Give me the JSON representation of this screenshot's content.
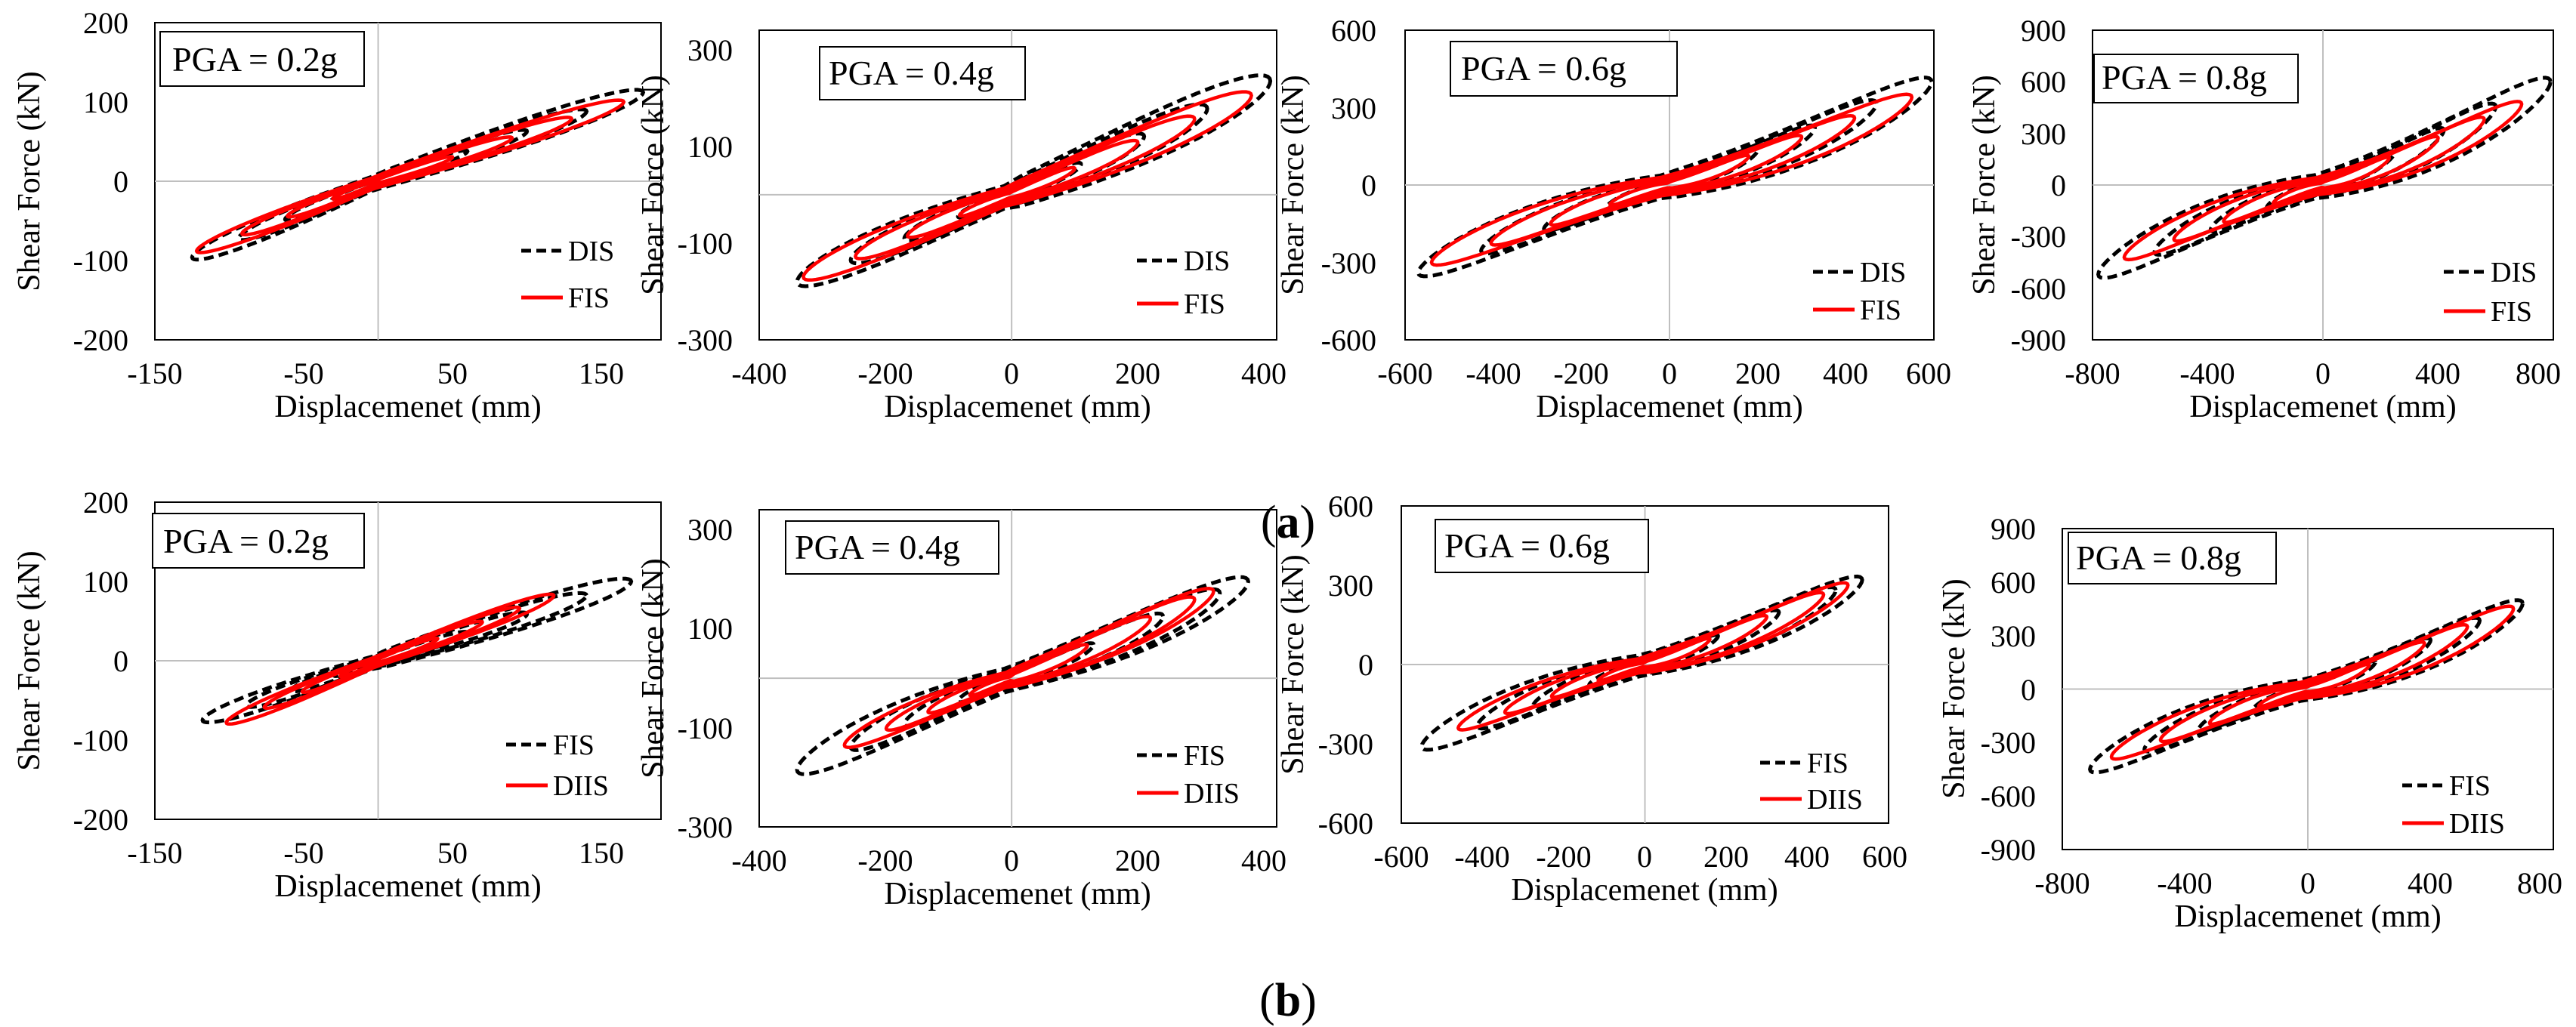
{
  "figure": {
    "row_a_caption": "(a)",
    "row_a_letter": "a",
    "row_b_caption": "(b)",
    "row_b_letter": "b"
  },
  "colors": {
    "dashed_series": "#000000",
    "solid_series": "#ff0000",
    "zero_lines": "#bfbfbf"
  },
  "chart_data": [
    {
      "id": "a1",
      "row": "a",
      "type": "line",
      "title": "PGA = 0.2g",
      "xlabel": "Displacemenet (mm)",
      "ylabel": "Shear Force (kN)",
      "xlim": [
        -150,
        190
      ],
      "ylim": [
        -200,
        200
      ],
      "xticks": [
        -150,
        -50,
        50,
        150
      ],
      "yticks": [
        -200,
        -100,
        0,
        100,
        200
      ],
      "series": [
        {
          "name": "DIS",
          "style": "dashed",
          "color": "#000000",
          "amp_x": [
            60,
            100,
            140,
            178
          ],
          "peak_force": 112,
          "min_x": -125,
          "min_force": -96,
          "pinch": 0.0,
          "width": 0.25
        },
        {
          "name": "FIS",
          "style": "solid",
          "color": "#ff0000",
          "amp_x": [
            50,
            90,
            130,
            165
          ],
          "peak_force": 100,
          "min_x": -122,
          "min_force": -88,
          "pinch": 0.0,
          "width": 0.22
        }
      ]
    },
    {
      "id": "a2",
      "row": "a",
      "type": "line",
      "title": "PGA = 0.4g",
      "xlabel": "Displacemenet (mm)",
      "ylabel": "Shear Force (kN)",
      "xlim": [
        -400,
        420
      ],
      "ylim": [
        -300,
        340
      ],
      "xticks": [
        -400,
        -200,
        0,
        200,
        400
      ],
      "yticks": [
        -300,
        -100,
        100,
        300
      ],
      "series": [
        {
          "name": "DIS",
          "style": "dashed",
          "color": "#000000",
          "amp_x": [
            110,
            210,
            310,
            410
          ],
          "peak_force": 235,
          "min_x": -340,
          "min_force": -180,
          "pinch": 0.2,
          "width": 0.35
        },
        {
          "name": "FIS",
          "style": "solid",
          "color": "#ff0000",
          "amp_x": [
            100,
            200,
            290,
            380
          ],
          "peak_force": 205,
          "min_x": -330,
          "min_force": -170,
          "pinch": 0.2,
          "width": 0.3
        }
      ]
    },
    {
      "id": "a3",
      "row": "a",
      "type": "line",
      "title": "PGA = 0.6g",
      "xlabel": "Displacemenet (mm)",
      "ylabel": "Shear Force (kN)",
      "xlim": [
        -600,
        600
      ],
      "ylim": [
        -600,
        600
      ],
      "xticks": [
        -600,
        -400,
        -200,
        0,
        200,
        400,
        600
      ],
      "yticks": [
        -600,
        -300,
        0,
        300,
        600
      ],
      "series": [
        {
          "name": "DIS",
          "style": "dashed",
          "color": "#000000",
          "amp_x": [
            200,
            330,
            470,
            595
          ],
          "peak_force": 400,
          "min_x": -570,
          "min_force": -340,
          "pinch": 0.7,
          "width": 0.35
        },
        {
          "name": "FIS",
          "style": "solid",
          "color": "#ff0000",
          "amp_x": [
            180,
            300,
            420,
            550
          ],
          "peak_force": 340,
          "min_x": -540,
          "min_force": -300,
          "pinch": 0.7,
          "width": 0.32
        }
      ]
    },
    {
      "id": "a4",
      "row": "a",
      "type": "line",
      "title": "PGA = 0.8g",
      "xlabel": "Displacemenet (mm)",
      "ylabel": "Shear Force (kN)",
      "xlim": [
        -800,
        800
      ],
      "ylim": [
        -900,
        900
      ],
      "xticks": [
        -800,
        -400,
        0,
        400,
        800
      ],
      "yticks": [
        -900,
        -600,
        -300,
        0,
        300,
        600,
        900
      ],
      "series": [
        {
          "name": "DIS",
          "style": "dashed",
          "color": "#000000",
          "amp_x": [
            250,
            420,
            600,
            790
          ],
          "peak_force": 600,
          "min_x": -780,
          "min_force": -520,
          "pinch": 0.8,
          "width": 0.35
        },
        {
          "name": "FIS",
          "style": "solid",
          "color": "#ff0000",
          "amp_x": [
            230,
            400,
            560,
            690
          ],
          "peak_force": 470,
          "min_x": -690,
          "min_force": -420,
          "pinch": 0.8,
          "width": 0.32
        }
      ]
    },
    {
      "id": "b1",
      "row": "b",
      "type": "line",
      "title": "PGA = 0.2g",
      "xlabel": "Displacemenet (mm)",
      "ylabel": "Shear Force (kN)",
      "xlim": [
        -150,
        190
      ],
      "ylim": [
        -200,
        200
      ],
      "xticks": [
        -150,
        -50,
        50,
        150
      ],
      "yticks": [
        -200,
        -100,
        0,
        100,
        200
      ],
      "series": [
        {
          "name": "FIS",
          "style": "dashed",
          "color": "#000000",
          "amp_x": [
            60,
            100,
            140,
            170
          ],
          "peak_force": 100,
          "min_x": -118,
          "min_force": -75,
          "pinch": 0.0,
          "width": 0.28
        },
        {
          "name": "DIIS",
          "style": "solid",
          "color": "#ff0000",
          "amp_x": [
            40,
            70,
            95,
            118
          ],
          "peak_force": 82,
          "min_x": -102,
          "min_force": -78,
          "pinch": 0.0,
          "width": 0.22
        }
      ]
    },
    {
      "id": "b2",
      "row": "b",
      "type": "line",
      "title": "PGA = 0.4g",
      "xlabel": "Displacemenet (mm)",
      "ylabel": "Shear Force (kN)",
      "xlim": [
        -400,
        420
      ],
      "ylim": [
        -300,
        340
      ],
      "xticks": [
        -400,
        -200,
        0,
        200,
        400
      ],
      "yticks": [
        -300,
        -100,
        100,
        300
      ],
      "series": [
        {
          "name": "FIS",
          "style": "dashed",
          "color": "#000000",
          "amp_x": [
            130,
            240,
            330,
            375
          ],
          "peak_force": 195,
          "min_x": -340,
          "min_force": -185,
          "pinch": 0.4,
          "width": 0.35
        },
        {
          "name": "DIIS",
          "style": "solid",
          "color": "#ff0000",
          "amp_x": [
            120,
            220,
            290,
            320
          ],
          "peak_force": 175,
          "min_x": -265,
          "min_force": -135,
          "pinch": 0.4,
          "width": 0.3
        }
      ]
    },
    {
      "id": "b3",
      "row": "b",
      "type": "line",
      "title": "PGA = 0.6g",
      "xlabel": "Displacemenet (mm)",
      "ylabel": "Shear Force (kN)",
      "xlim": [
        -600,
        600
      ],
      "ylim": [
        -600,
        600
      ],
      "xticks": [
        -600,
        -400,
        -200,
        0,
        200,
        400,
        600
      ],
      "yticks": [
        -600,
        -300,
        0,
        300,
        600
      ],
      "series": [
        {
          "name": "FIS",
          "style": "dashed",
          "color": "#000000",
          "amp_x": [
            180,
            330,
            470,
            535
          ],
          "peak_force": 320,
          "min_x": -550,
          "min_force": -310,
          "pinch": 0.7,
          "width": 0.35
        },
        {
          "name": "DIIS",
          "style": "solid",
          "color": "#ff0000",
          "amp_x": [
            160,
            300,
            440,
            500
          ],
          "peak_force": 300,
          "min_x": -460,
          "min_force": -240,
          "pinch": 0.7,
          "width": 0.3
        }
      ]
    },
    {
      "id": "b4",
      "row": "b",
      "type": "line",
      "title": "PGA = 0.8g",
      "xlabel": "Displacemenet (mm)",
      "ylabel": "Shear Force (kN)",
      "xlim": [
        -800,
        800
      ],
      "ylim": [
        -900,
        900
      ],
      "xticks": [
        -800,
        -400,
        0,
        400,
        800
      ],
      "yticks": [
        -900,
        -600,
        -300,
        0,
        300,
        600,
        900
      ],
      "series": [
        {
          "name": "FIS",
          "style": "dashed",
          "color": "#000000",
          "amp_x": [
            220,
            400,
            560,
            700
          ],
          "peak_force": 480,
          "min_x": -710,
          "min_force": -450,
          "pinch": 0.8,
          "width": 0.35
        },
        {
          "name": "DIIS",
          "style": "solid",
          "color": "#ff0000",
          "amp_x": [
            200,
            380,
            520,
            670
          ],
          "peak_force": 450,
          "min_x": -640,
          "min_force": -380,
          "pinch": 0.8,
          "width": 0.32
        }
      ]
    }
  ]
}
